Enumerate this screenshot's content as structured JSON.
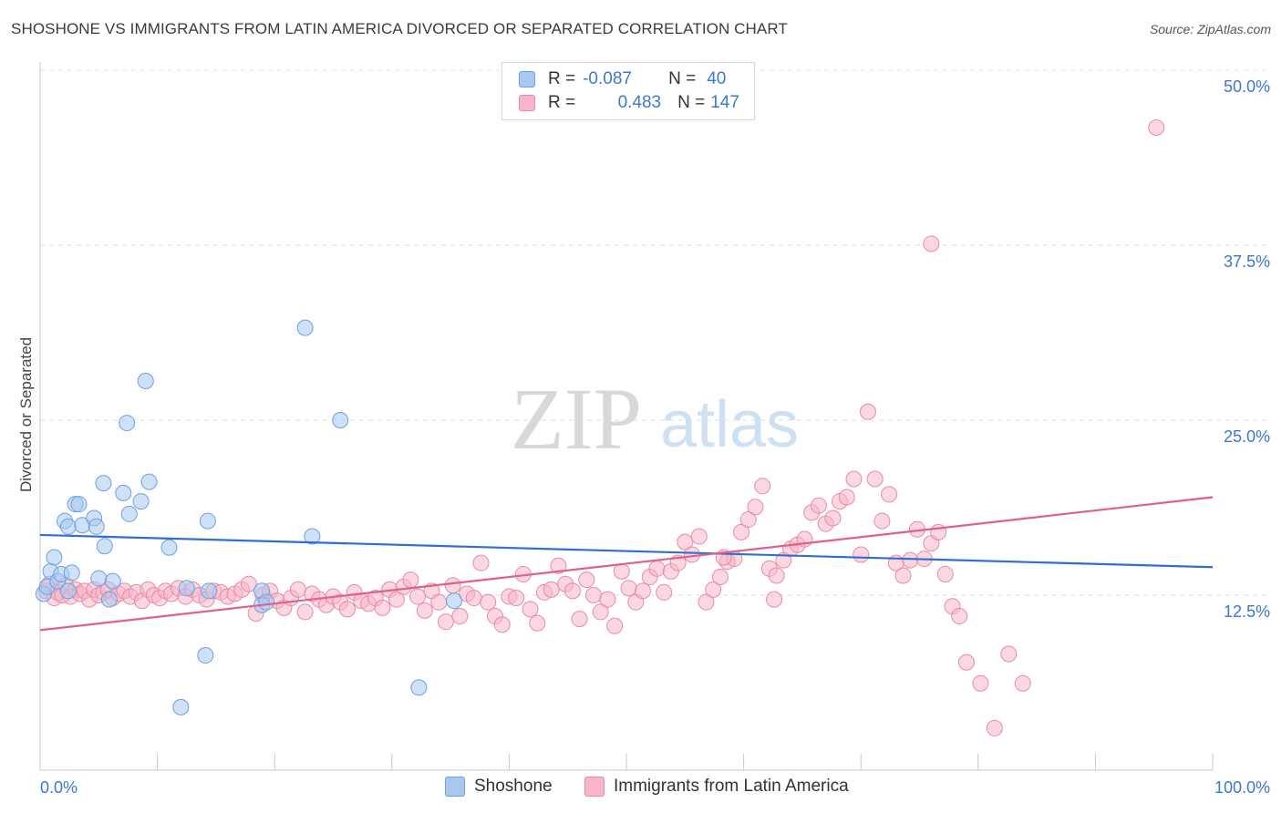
{
  "header": {
    "title": "SHOSHONE VS IMMIGRANTS FROM LATIN AMERICA DIVORCED OR SEPARATED CORRELATION CHART",
    "source": "Source: ZipAtlas.com"
  },
  "watermark": {
    "zip": "ZIP",
    "atlas": "atlas"
  },
  "legend": {
    "rows": [
      {
        "r_label": "R =",
        "r_value": "-0.087",
        "n_label": "N =",
        "n_value": "40",
        "color": "#a8c8f0",
        "edge": "#6fa0e0"
      },
      {
        "r_label": "R =",
        "r_value": "0.483",
        "n_label": "N =",
        "n_value": "147",
        "color": "#f7b6c8",
        "edge": "#e98aa6"
      }
    ]
  },
  "bottom_legend": {
    "items": [
      {
        "label": "Shoshone",
        "color": "#a8c8f0",
        "edge": "#6fa0e0"
      },
      {
        "label": "Immigrants from Latin America",
        "color": "#f7b6c8",
        "edge": "#e98aa6"
      }
    ]
  },
  "chart_data": {
    "type": "scatter",
    "title": "SHOSHONE VS IMMIGRANTS FROM LATIN AMERICA DIVORCED OR SEPARATED CORRELATION CHART",
    "xlabel": "",
    "ylabel": "Divorced or Separated",
    "xlim": [
      0,
      100
    ],
    "ylim": [
      0,
      50
    ],
    "x_tick_labels": [
      "0.0%",
      "100.0%"
    ],
    "y_ticks": [
      12.5,
      25.0,
      37.5,
      50.0
    ],
    "y_tick_labels": [
      "12.5%",
      "25.0%",
      "37.5%",
      "50.0%"
    ],
    "grid": "horizontal dashed",
    "legend_position": "top-center",
    "series": [
      {
        "name": "Shoshone",
        "color": "#a8c8f0",
        "edge": "#6fa0e0",
        "trend_color": "#2f6fcf",
        "trend": {
          "x": [
            0,
            100
          ],
          "y": [
            16.8,
            14.5
          ]
        },
        "x": [
          0.3,
          0.6,
          0.9,
          1.2,
          1.5,
          1.8,
          2.1,
          2.4,
          2.7,
          2.4,
          3.0,
          3.3,
          3.6,
          4.6,
          4.8,
          5.0,
          5.4,
          5.5,
          5.9,
          6.2,
          7.1,
          7.4,
          7.6,
          8.6,
          9.0,
          9.3,
          11.0,
          12.0,
          12.5,
          14.4,
          14.3,
          14.1,
          18.9,
          18.9,
          19.3,
          22.6,
          23.2,
          25.6,
          32.3,
          35.3
        ],
        "y": [
          12.6,
          13.1,
          14.2,
          15.2,
          13.5,
          14.0,
          17.8,
          17.4,
          14.1,
          12.8,
          19.0,
          19.0,
          17.5,
          18.0,
          17.4,
          13.7,
          20.5,
          16.0,
          12.2,
          13.5,
          19.8,
          24.8,
          18.3,
          19.2,
          27.8,
          20.6,
          15.9,
          4.5,
          13.0,
          12.8,
          17.8,
          8.2,
          12.8,
          11.8,
          12.0,
          31.6,
          16.7,
          25.0,
          5.9,
          12.1
        ]
      },
      {
        "name": "Immigrants from Latin America",
        "color": "#f7b6c8",
        "edge": "#e98aa6",
        "trend_color": "#e0608a",
        "trend": {
          "x": [
            0,
            100
          ],
          "y": [
            10.0,
            19.5
          ]
        },
        "x": [
          0.5,
          0.8,
          1.2,
          1.5,
          1.9,
          2.2,
          2.6,
          3.0,
          3.4,
          3.8,
          4.2,
          4.6,
          5.0,
          5.4,
          5.8,
          6.2,
          6.7,
          7.2,
          7.7,
          8.2,
          8.7,
          9.2,
          9.7,
          10.2,
          10.7,
          11.2,
          11.8,
          12.4,
          13.0,
          13.6,
          14.2,
          14.8,
          15.4,
          16.0,
          16.6,
          17.2,
          17.8,
          18.4,
          19.0,
          19.6,
          20.2,
          20.8,
          21.4,
          22.0,
          22.6,
          23.2,
          23.8,
          24.4,
          25.0,
          25.6,
          26.2,
          26.8,
          27.4,
          28.0,
          28.6,
          29.2,
          29.8,
          30.4,
          31.0,
          31.6,
          32.2,
          32.8,
          33.4,
          34.0,
          34.6,
          35.2,
          35.8,
          36.4,
          37.0,
          37.6,
          38.2,
          38.8,
          39.4,
          40.0,
          40.6,
          41.2,
          41.8,
          42.4,
          43.0,
          43.6,
          44.2,
          44.8,
          45.4,
          46.0,
          46.6,
          47.2,
          47.8,
          48.4,
          49.0,
          49.6,
          50.2,
          50.8,
          51.4,
          52.0,
          52.6,
          53.2,
          53.8,
          54.4,
          55.0,
          55.6,
          56.2,
          56.8,
          57.4,
          58.0,
          58.6,
          59.2,
          59.8,
          60.4,
          61.0,
          61.6,
          62.2,
          62.8,
          63.4,
          64.0,
          64.6,
          65.2,
          65.8,
          66.4,
          67.0,
          67.6,
          68.2,
          68.8,
          69.4,
          70.0,
          70.6,
          71.2,
          71.8,
          72.4,
          73.0,
          73.6,
          74.2,
          74.8,
          75.4,
          76.0,
          76.6,
          77.2,
          77.8,
          78.4,
          79.0,
          80.2,
          81.4,
          82.6,
          83.8,
          95.2,
          76.0,
          58.3,
          62.6
        ],
        "y": [
          12.8,
          13.3,
          12.3,
          12.7,
          12.5,
          13.2,
          12.4,
          12.9,
          12.6,
          12.8,
          12.2,
          12.9,
          12.5,
          12.7,
          12.9,
          12.3,
          12.6,
          12.8,
          12.4,
          12.7,
          12.1,
          12.9,
          12.5,
          12.3,
          12.8,
          12.6,
          13.0,
          12.4,
          12.9,
          12.5,
          12.2,
          12.8,
          12.7,
          12.4,
          12.6,
          12.9,
          13.3,
          11.2,
          12.5,
          12.8,
          12.1,
          11.6,
          12.3,
          12.9,
          11.3,
          12.6,
          12.2,
          11.8,
          12.4,
          12.0,
          11.5,
          12.7,
          12.1,
          11.9,
          12.3,
          11.6,
          12.9,
          12.2,
          13.1,
          13.6,
          12.4,
          11.4,
          12.8,
          12.0,
          10.6,
          13.2,
          11.0,
          12.6,
          12.3,
          14.8,
          12.0,
          11.0,
          10.4,
          12.4,
          12.3,
          14.0,
          11.5,
          10.5,
          12.7,
          12.9,
          14.6,
          13.3,
          12.8,
          10.8,
          13.6,
          12.5,
          11.3,
          12.2,
          10.3,
          14.2,
          13.0,
          12.0,
          12.8,
          13.8,
          14.4,
          12.7,
          14.2,
          14.8,
          16.3,
          15.4,
          16.7,
          12.0,
          12.9,
          13.8,
          14.9,
          15.1,
          17.0,
          17.9,
          18.8,
          20.3,
          14.4,
          13.9,
          15.0,
          15.8,
          16.1,
          16.5,
          18.4,
          18.9,
          17.6,
          18.0,
          19.2,
          19.5,
          20.8,
          15.4,
          25.6,
          20.8,
          17.8,
          19.7,
          14.8,
          13.9,
          15.0,
          17.2,
          15.1,
          16.2,
          17.0,
          14.0,
          11.7,
          11.0,
          7.7,
          6.2,
          3.0,
          8.3,
          6.2,
          45.9,
          37.6,
          15.2,
          12.2
        ]
      }
    ]
  }
}
